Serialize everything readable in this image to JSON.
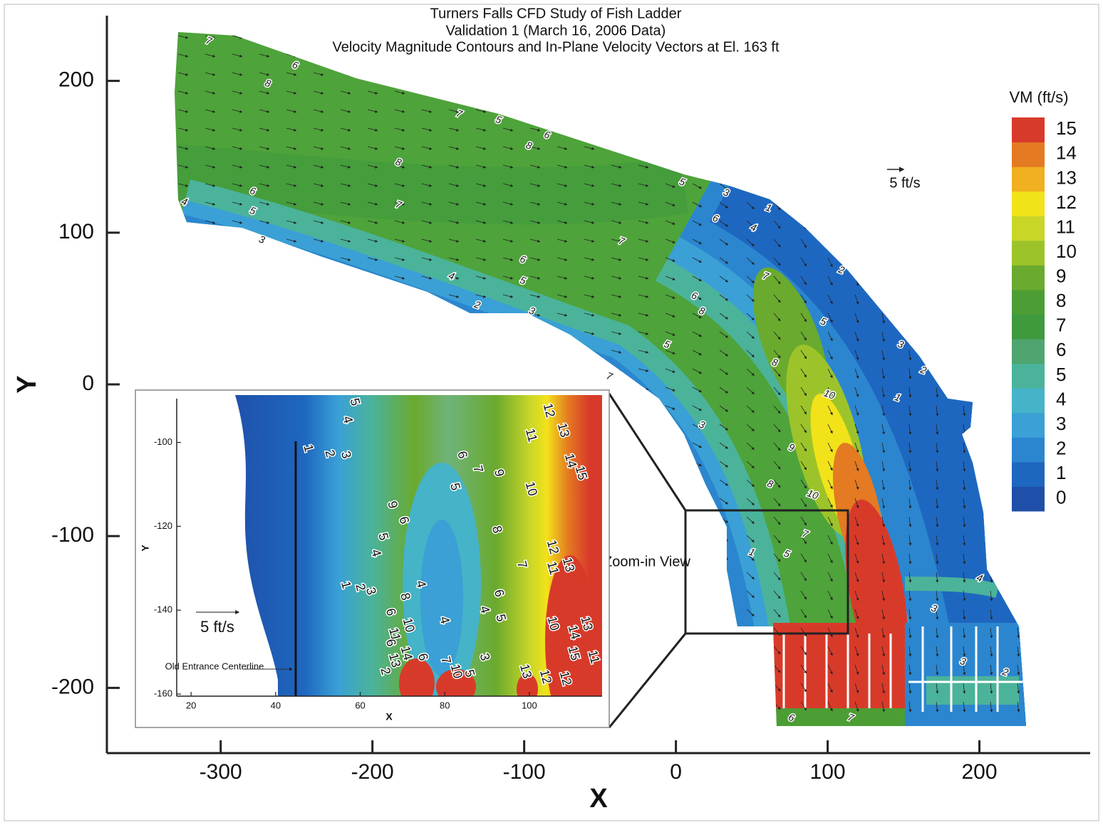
{
  "chart_data": [
    {
      "type": "contour",
      "title": "Turners Falls CFD Study of Fish Ladder",
      "subtitle": [
        "Validation 1 (March 16, 2006 Data)",
        "Velocity Magnitude Contours and In-Plane Velocity Vectors at El. 163 ft"
      ],
      "x_label": "X",
      "y_label": "Y",
      "xlim": [
        -375,
        273
      ],
      "ylim": [
        -243,
        243
      ],
      "xticks": [
        -300,
        -200,
        -100,
        0,
        100,
        200
      ],
      "yticks": [
        -200,
        -100,
        0,
        100,
        200
      ],
      "annotations": [
        "5 ft/s",
        "Zoom-in View"
      ],
      "colorbar": {
        "title": "VM (ft/s)",
        "levels": [
          0,
          1,
          2,
          3,
          4,
          5,
          6,
          7,
          8,
          9,
          10,
          11,
          12,
          13,
          14,
          15
        ],
        "colors": [
          "#1f4fa8",
          "#1e67c0",
          "#2b86cf",
          "#3aa0d6",
          "#45b3c8",
          "#4bb39a",
          "#4ea570",
          "#3f9a3e",
          "#4c9e34",
          "#6aaa2e",
          "#9cc42a",
          "#c8d628",
          "#f2e21a",
          "#f0b020",
          "#e47a22",
          "#d83a2a"
        ]
      },
      "contour_labels": {
        "x": [
          -308,
          -251,
          -269,
          -143,
          -117,
          -85,
          -97,
          -183,
          4,
          33,
          61,
          -279,
          -324,
          -279,
          -183,
          26,
          51,
          -273,
          -36,
          -101,
          -148,
          -101,
          109,
          59,
          -131,
          -95,
          12,
          17,
          97,
          -6,
          148,
          65,
          163,
          -44,
          101,
          146,
          17,
          76,
          62,
          90,
          50,
          73,
          85,
          200,
          170,
          189,
          217,
          76,
          115
        ],
        "y": [
          226,
          210,
          198,
          178,
          174,
          164,
          157,
          146,
          133,
          126,
          116,
          127,
          120,
          114,
          118,
          109,
          103,
          95,
          94,
          82,
          71,
          68,
          75,
          71,
          52,
          48,
          58,
          48,
          41,
          26,
          26,
          14,
          9,
          5,
          -7,
          -9,
          -27,
          -42,
          -66,
          -73,
          -111,
          -112,
          -99,
          -128,
          -148,
          -183,
          -190,
          -220,
          -220
        ],
        "values": [
          7,
          6,
          8,
          7,
          5,
          6,
          8,
          8,
          5,
          3,
          1,
          6,
          4,
          5,
          7,
          6,
          4,
          3,
          7,
          6,
          4,
          5,
          2,
          7,
          2,
          3,
          6,
          8,
          5,
          5,
          3,
          8,
          2,
          7,
          10,
          1,
          3,
          9,
          8,
          10,
          1,
          5,
          7,
          4,
          3,
          3,
          2,
          6,
          7
        ]
      }
    },
    {
      "type": "contour",
      "x_label": "X",
      "y_label": "Y",
      "xlim": [
        16.6,
        117.2
      ],
      "ylim": [
        -160.5,
        -88.7
      ],
      "xticks": [
        20,
        40,
        60,
        80,
        100
      ],
      "yticks": [
        -100,
        -120,
        -140,
        -160
      ],
      "annotations": [
        "5 ft/s",
        "Old Entrance Centerline"
      ],
      "contour_labels": {
        "x": [
          104.5,
          107.9,
          58.6,
          56.9,
          47.6,
          52.7,
          56.5,
          100.3,
          109.6,
          112.1,
          84,
          87.7,
          92.7,
          100.3,
          82.3,
          67.5,
          70.2,
          92.2,
          105.4,
          105.4,
          109.1,
          65.3,
          63.6,
          98.1,
          56.5,
          59.9,
          62.4,
          74.2,
          70.5,
          92.7,
          89.3,
          93.1,
          79.8,
          67.1,
          71.3,
          68,
          105.5,
          110.4,
          113.4,
          110.4,
          67.1,
          68,
          70.8,
          74.7,
          89.3,
          65.8,
          80.1,
          82.6,
          85.7,
          99,
          103.7,
          108.4,
          115.1
        ],
        "y": [
          -92.4,
          -97.1,
          -90.4,
          -94.6,
          -101.4,
          -102.7,
          -103,
          -98.3,
          -104.4,
          -107.3,
          -103,
          -106.4,
          -107.3,
          -111.1,
          -110.6,
          -114.9,
          -118.6,
          -120.8,
          -125,
          -130,
          -129.2,
          -122.5,
          -126.4,
          -129.2,
          -134,
          -134.6,
          -135.5,
          -133.8,
          -136.8,
          -136,
          -139.9,
          -141.9,
          -142.4,
          -140.5,
          -143.6,
          -145.8,
          -143.2,
          -145.3,
          -143.2,
          -150.3,
          -147.8,
          -152,
          -150.3,
          -151.2,
          -151.2,
          -154.6,
          -152,
          -154.6,
          -155.1,
          -154.6,
          -155.9,
          -156.3,
          -151.2
        ],
        "values": [
          12,
          13,
          5,
          4,
          1,
          2,
          3,
          11,
          14,
          15,
          6,
          7,
          9,
          10,
          5,
          9,
          6,
          8,
          12,
          11,
          13,
          5,
          4,
          7,
          1,
          2,
          3,
          4,
          8,
          6,
          4,
          5,
          4,
          6,
          10,
          11,
          10,
          14,
          13,
          15,
          6,
          13,
          14,
          6,
          3,
          2,
          7,
          10,
          5,
          13,
          12,
          12,
          11
        ]
      }
    }
  ]
}
